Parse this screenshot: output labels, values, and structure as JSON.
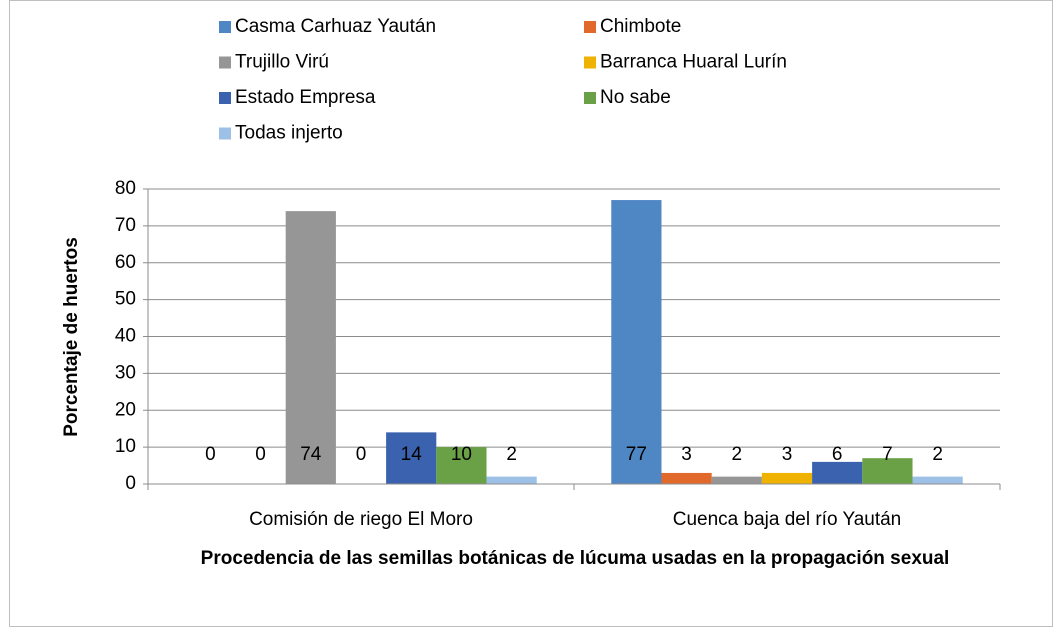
{
  "chart_data": {
    "type": "bar",
    "categories": [
      "Comisión de riego El Moro",
      "Cuenca baja del río Yaután"
    ],
    "series": [
      {
        "name": "Casma Carhuaz Yaután",
        "color": "#4f86c4",
        "values": [
          0,
          77
        ]
      },
      {
        "name": "Chimbote",
        "color": "#e0692b",
        "values": [
          0,
          3
        ]
      },
      {
        "name": "Trujillo Virú",
        "color": "#969696",
        "values": [
          74,
          2
        ]
      },
      {
        "name": "Barranca Huaral Lurín",
        "color": "#efb200",
        "values": [
          0,
          3
        ]
      },
      {
        "name": "Estado Empresa",
        "color": "#3a62ae",
        "values": [
          14,
          6
        ]
      },
      {
        "name": "No sabe",
        "color": "#6aa146",
        "values": [
          10,
          7
        ]
      },
      {
        "name": "Todas injerto",
        "color": "#9dc0e6",
        "values": [
          2,
          2
        ]
      }
    ],
    "ylabel": "Porcentaje de huertos",
    "xlabel": "Procedencia de las semillas botánicas de lúcuma usadas en la propagación sexual",
    "ylim": [
      0,
      80
    ],
    "yticks": [
      0,
      10,
      20,
      30,
      40,
      50,
      60,
      70,
      80
    ],
    "grid": true
  }
}
